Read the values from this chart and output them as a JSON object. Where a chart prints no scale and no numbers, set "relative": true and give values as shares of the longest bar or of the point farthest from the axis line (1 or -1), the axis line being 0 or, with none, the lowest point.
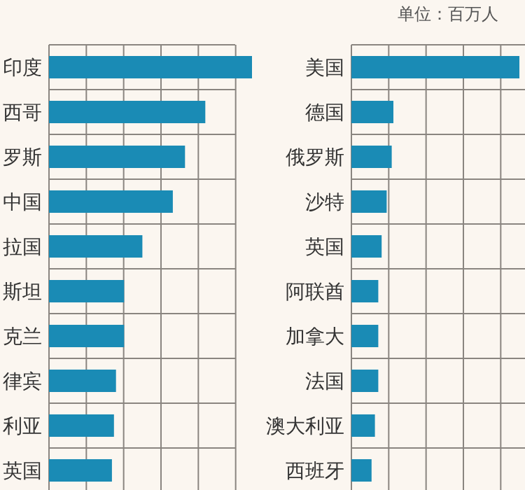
{
  "chart_data": [
    {
      "type": "bar",
      "orientation": "horizontal",
      "relative": true,
      "grid": true,
      "color": "#1a8bb5",
      "categories": [
        "印度",
        "西哥",
        "罗斯",
        "中国",
        "拉国",
        "斯坦",
        "克兰",
        "律宾",
        "利亚",
        "英国"
      ],
      "values": [
        1,
        0.77,
        0.67,
        0.61,
        0.46,
        0.37,
        0.37,
        0.33,
        0.32,
        0.31
      ]
    },
    {
      "type": "bar",
      "orientation": "horizontal",
      "relative": true,
      "grid": true,
      "color": "#1a8bb5",
      "annotations": [
        "单位：百万人"
      ],
      "categories": [
        "美国",
        "德国",
        "俄罗斯",
        "沙特",
        "英国",
        "阿联酋",
        "加拿大",
        "法国",
        "澳大利亚",
        "西班牙"
      ],
      "values": [
        1,
        0.25,
        0.24,
        0.21,
        0.18,
        0.16,
        0.16,
        0.16,
        0.14,
        0.12
      ]
    }
  ]
}
